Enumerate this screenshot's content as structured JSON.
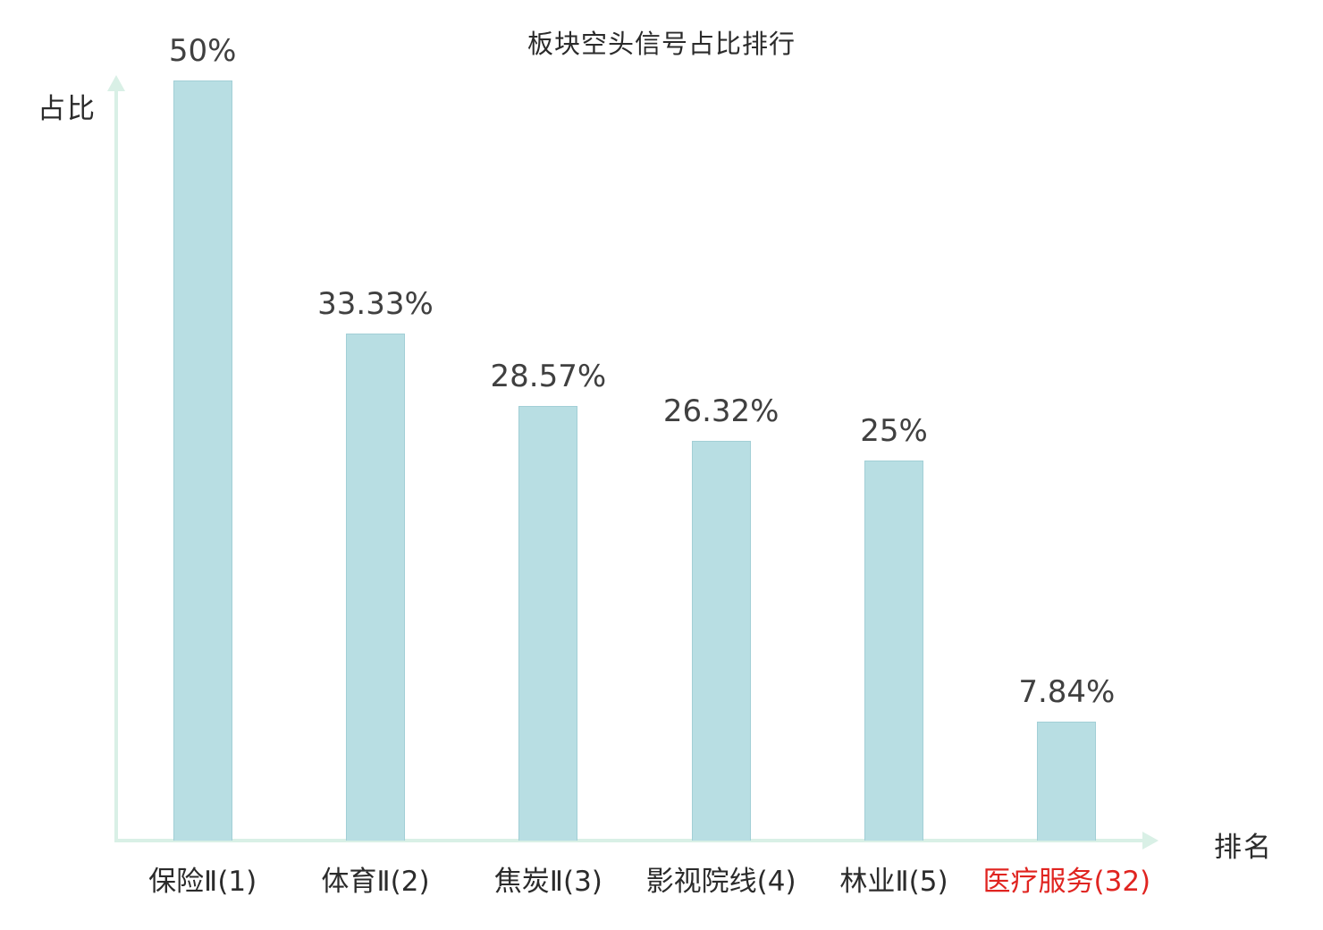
{
  "title": "板块空头信号占比排行",
  "y_axis_label": "占比",
  "x_axis_label": "排名",
  "colors": {
    "bar_fill": "#b8dee3",
    "bar_border": "#a2cfd6",
    "axis": "#d9f0e6",
    "text": "#404040",
    "highlight": "#e02420"
  },
  "chart_data": {
    "type": "bar",
    "title": "板块空头信号占比排行",
    "xlabel": "排名",
    "ylabel": "占比",
    "ylim": [
      0,
      50
    ],
    "grid": false,
    "legend": false,
    "categories": [
      "保险Ⅱ(1)",
      "体育Ⅱ(2)",
      "焦炭Ⅱ(3)",
      "影视院线(4)",
      "林业Ⅱ(5)",
      "医疗服务(32)"
    ],
    "values": [
      50,
      33.33,
      28.57,
      26.32,
      25,
      7.84
    ],
    "value_labels": [
      "50%",
      "33.33%",
      "28.57%",
      "26.32%",
      "25%",
      "7.84%"
    ],
    "highlight_category_index": 5
  }
}
